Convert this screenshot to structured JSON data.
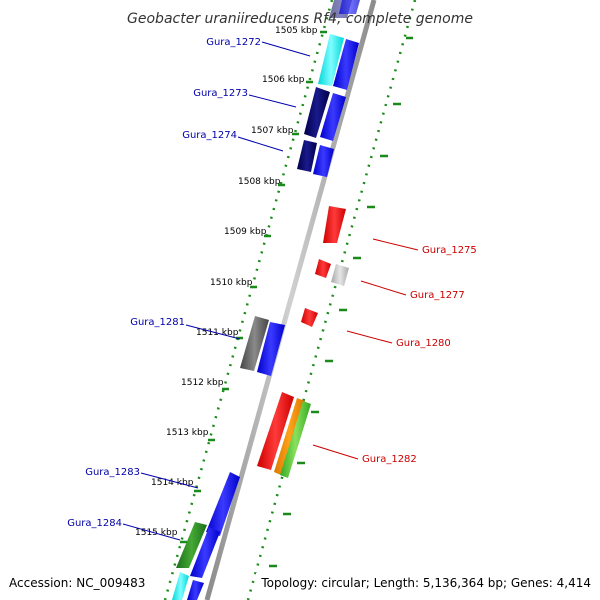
{
  "title": "Geobacter uraniireducens Rf4, complete genome",
  "footer": {
    "accession": "Accession: NC_009483",
    "topology": "Topology: circular; Length: 5,136,364 bp; Genes: 4,414"
  },
  "colors": {
    "backbone": "#999999",
    "tick_track": "#1a8a1a",
    "label_left": "#0000aa",
    "label_right": "#cc0000"
  },
  "kbp_labels": [
    "1505 kbp",
    "1506 kbp",
    "1507 kbp",
    "1508 kbp",
    "1509 kbp",
    "1510 kbp",
    "1511 kbp",
    "1512 kbp",
    "1513 kbp",
    "1514 kbp",
    "1515 kbp"
  ],
  "genes_left": [
    {
      "label": "Gura_1272",
      "color": "#1e90ff"
    },
    {
      "label": "Gura_1273",
      "color": "#000080"
    },
    {
      "label": "Gura_1274",
      "color": "#000080"
    },
    {
      "label": "Gura_1281",
      "color": "#666666"
    },
    {
      "label": "Gura_1283",
      "color": "#0000ff"
    },
    {
      "label": "Gura_1284",
      "color": "#228b22"
    }
  ],
  "genes_right": [
    {
      "label": "Gura_1275",
      "color": "#ff0000"
    },
    {
      "label": "Gura_1277",
      "color": "#ff0000"
    },
    {
      "label": "Gura_1280",
      "color": "#ff0000"
    },
    {
      "label": "Gura_1282",
      "color": "#ff0000"
    }
  ]
}
